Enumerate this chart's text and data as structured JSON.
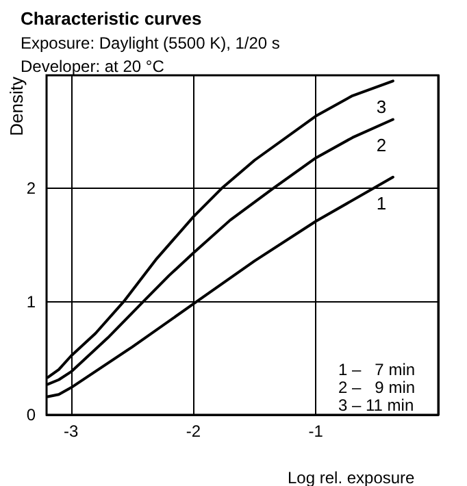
{
  "chart_data": {
    "type": "line",
    "title": "Characteristic curves",
    "subtitle": "Exposure: Daylight (5500 K), 1/20 s\nDeveloper: at 20 °C",
    "xlabel": "Log rel. exposure",
    "ylabel": "Density",
    "xlim": [
      -3.2,
      0
    ],
    "xticks": [
      -3,
      -2,
      -1
    ],
    "ylim": [
      0,
      3
    ],
    "yticks": [
      0,
      1,
      2
    ],
    "grid": true,
    "legend": false,
    "marker": "none",
    "line_style": "solid",
    "annotations": [
      "1 –   7 min",
      "2 –   9 min",
      "3 – 11 min"
    ],
    "series": [
      {
        "name": "1",
        "color": "#000000",
        "x": [
          -3.19,
          -3.1,
          -3.0,
          -2.5,
          -2.0,
          -1.5,
          -1.0,
          -0.37
        ],
        "values": [
          0.16,
          0.18,
          0.24,
          0.6,
          0.98,
          1.36,
          1.71,
          2.1
        ]
      },
      {
        "name": "2",
        "color": "#000000",
        "x": [
          -3.19,
          -3.1,
          -3.0,
          -2.7,
          -2.41,
          -2.2,
          -2.0,
          -1.7,
          -1.35,
          -1.0,
          -0.7,
          -0.37
        ],
        "values": [
          0.27,
          0.31,
          0.38,
          0.68,
          1.0,
          1.23,
          1.43,
          1.72,
          2.0,
          2.27,
          2.45,
          2.61
        ]
      },
      {
        "name": "3",
        "color": "#000000",
        "x": [
          -3.19,
          -3.1,
          -3.0,
          -2.8,
          -2.57,
          -2.3,
          -2.0,
          -1.77,
          -1.5,
          -1.0,
          -0.7,
          -0.37
        ],
        "values": [
          0.33,
          0.4,
          0.52,
          0.72,
          1.0,
          1.38,
          1.75,
          2.0,
          2.25,
          2.64,
          2.82,
          2.95
        ]
      }
    ]
  }
}
